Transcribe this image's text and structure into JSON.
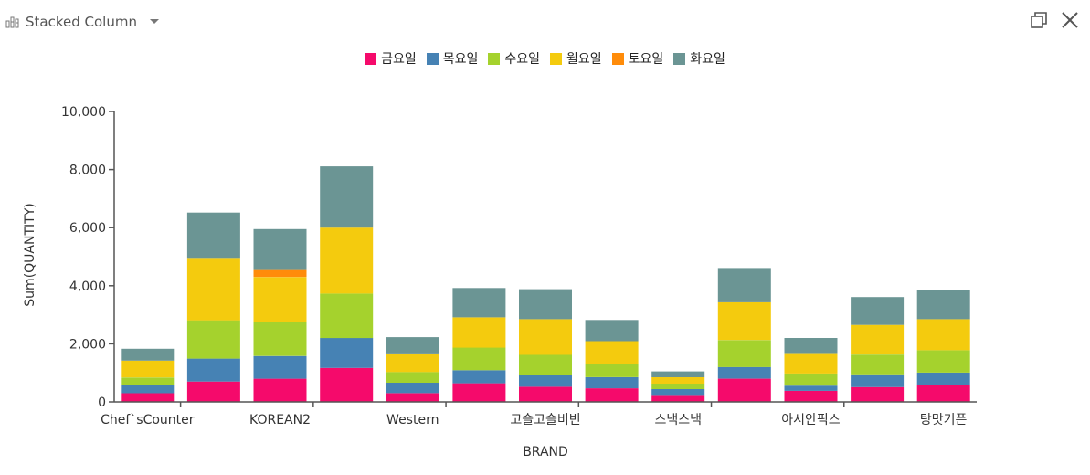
{
  "toolbar": {
    "chart_type_label": "Stacked Column",
    "chart_icon": "bar-chart-icon",
    "dropdown_icon": "caret-down-icon",
    "maximize_icon": "maximize-icon",
    "close_icon": "close-icon"
  },
  "colors": {
    "금요일": "#f50a6b",
    "목요일": "#4682b4",
    "수요일": "#a5d22d",
    "월요일": "#f4cb0e",
    "토요일": "#ff8c0a",
    "화요일": "#6b9594",
    "axis": "#555555"
  },
  "chart_data": {
    "type": "bar",
    "stacked": true,
    "xlabel": "BRAND",
    "ylabel": "Sum(QUANTITY)",
    "ylim": [
      0,
      10000
    ],
    "yticks": [
      0,
      2000,
      4000,
      6000,
      8000,
      10000
    ],
    "ytick_labels": [
      "0",
      "2,000",
      "4,000",
      "6,000",
      "8,000",
      "10,000"
    ],
    "legend_position": "top-center",
    "grid": false,
    "categories": [
      "Chef`sCounter",
      "",
      "KOREAN2",
      "",
      "Western",
      "",
      "고슬고슬비빈",
      "",
      "스낵스낵",
      "",
      "아시안픽스",
      "",
      "탕맛기픈"
    ],
    "series": [
      {
        "name": "금요일",
        "values": [
          300,
          700,
          800,
          1170,
          300,
          640,
          520,
          470,
          240,
          800,
          380,
          510,
          570
        ]
      },
      {
        "name": "목요일",
        "values": [
          270,
          790,
          780,
          1030,
          360,
          450,
          400,
          380,
          200,
          400,
          180,
          440,
          440
        ]
      },
      {
        "name": "수요일",
        "values": [
          270,
          1320,
          1180,
          1530,
          370,
          780,
          700,
          460,
          190,
          930,
          420,
          680,
          770
        ]
      },
      {
        "name": "월요일",
        "values": [
          580,
          2150,
          1540,
          2270,
          640,
          1040,
          1230,
          780,
          220,
          1300,
          700,
          1020,
          1070
        ]
      },
      {
        "name": "토요일",
        "values": [
          0,
          0,
          240,
          0,
          0,
          0,
          0,
          0,
          0,
          0,
          0,
          0,
          0
        ]
      },
      {
        "name": "화요일",
        "values": [
          410,
          1560,
          1410,
          2110,
          560,
          1010,
          1030,
          730,
          200,
          1180,
          520,
          960,
          990
        ]
      }
    ]
  }
}
